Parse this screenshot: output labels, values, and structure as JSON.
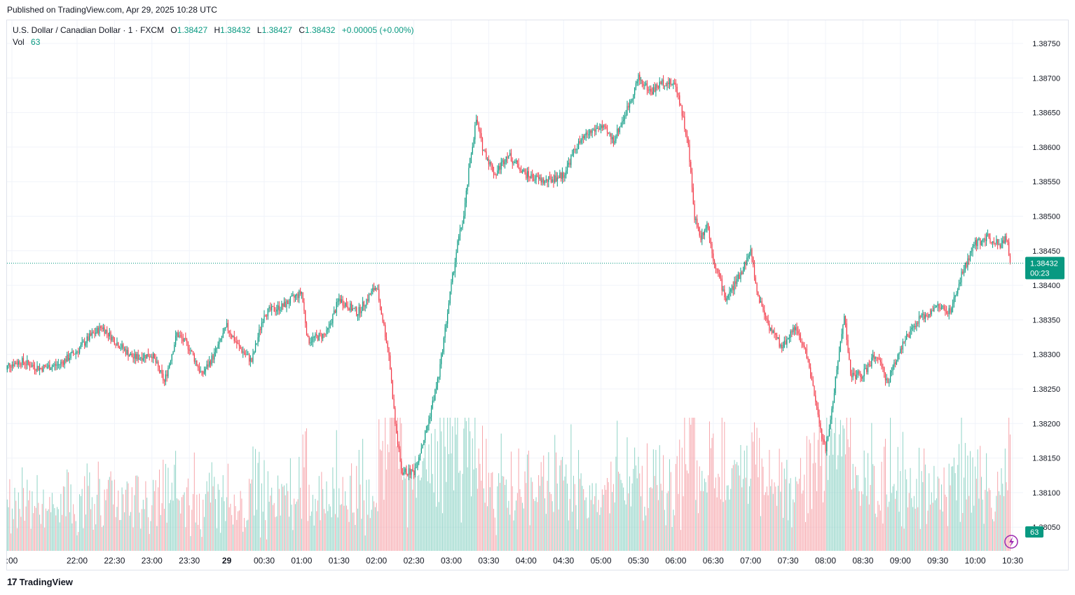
{
  "header": {
    "published": "Published on TradingView.com, Apr 29, 2025 10:28 UTC"
  },
  "legend": {
    "symbol": "U.S. Dollar / Canadian Dollar · 1 · FXCM",
    "o_label": "O",
    "o": "1.38427",
    "h_label": "H",
    "h": "1.38432",
    "l_label": "L",
    "l": "1.38427",
    "c_label": "C",
    "c": "1.38432",
    "change": "+0.00005 (+0.00%)",
    "vol_label": "Vol",
    "vol": "63"
  },
  "footer": {
    "brand": "TradingView",
    "logo_glyph": "17"
  },
  "colors": {
    "up": "#089981",
    "down": "#f23645",
    "grid": "#f0f3fa",
    "text": "#131722",
    "price_label_bg": "#089981",
    "volume_up": "#8fd3c6",
    "volume_down": "#f6a5ab",
    "icon": "#9c27b0"
  },
  "icons": {
    "bottom_right": "lightning-icon"
  },
  "chart_data": {
    "type": "candlestick",
    "title": "U.S. Dollar / Canadian Dollar · 1 · FXCM",
    "y_ticks": [
      "1.38750",
      "1.38700",
      "1.38650",
      "1.38600",
      "1.38550",
      "1.38500",
      "1.38450",
      "1.38400",
      "1.38350",
      "1.38300",
      "1.38250",
      "1.38200",
      "1.38150",
      "1.38100",
      "1.38050"
    ],
    "ylim": [
      1.38,
      1.388
    ],
    "x_ticks": [
      ":00",
      "22:00",
      "22:30",
      "23:00",
      "23:30",
      "29",
      "00:30",
      "01:00",
      "01:30",
      "02:00",
      "02:30",
      "03:00",
      "03:30",
      "04:00",
      "04:30",
      "05:00",
      "05:30",
      "06:00",
      "06:30",
      "07:00",
      "07:30",
      "08:00",
      "08:30",
      "09:00",
      "09:30",
      "10:00",
      "10:30"
    ],
    "last_price": "1.38432",
    "countdown": "00:23",
    "last_volume": "63",
    "price_path": [
      [
        "21:00",
        1.3827
      ],
      [
        "21:05",
        1.38285
      ],
      [
        "21:15",
        1.3829
      ],
      [
        "21:30",
        1.3828
      ],
      [
        "21:45",
        1.38285
      ],
      [
        "22:00",
        1.38305
      ],
      [
        "22:10",
        1.38325
      ],
      [
        "22:20",
        1.3834
      ],
      [
        "22:30",
        1.3832
      ],
      [
        "22:45",
        1.38295
      ],
      [
        "23:00",
        1.383
      ],
      [
        "23:10",
        1.3826
      ],
      [
        "23:20",
        1.3833
      ],
      [
        "23:30",
        1.3831
      ],
      [
        "23:40",
        1.3827
      ],
      [
        "23:50",
        1.383
      ],
      [
        "00:00",
        1.3834
      ],
      [
        "00:10",
        1.3831
      ],
      [
        "00:20",
        1.3829
      ],
      [
        "00:30",
        1.3836
      ],
      [
        "00:45",
        1.3837
      ],
      [
        "01:00",
        1.3839
      ],
      [
        "01:05",
        1.3832
      ],
      [
        "01:20",
        1.3833
      ],
      [
        "01:30",
        1.3838
      ],
      [
        "01:45",
        1.3836
      ],
      [
        "02:00",
        1.384
      ],
      [
        "02:05",
        1.3835
      ],
      [
        "02:10",
        1.383
      ],
      [
        "02:15",
        1.382
      ],
      [
        "02:20",
        1.3813
      ],
      [
        "02:30",
        1.3813
      ],
      [
        "02:40",
        1.3819
      ],
      [
        "02:45",
        1.3823
      ],
      [
        "02:50",
        1.3827
      ],
      [
        "03:00",
        1.384
      ],
      [
        "03:05",
        1.3846
      ],
      [
        "03:10",
        1.385
      ],
      [
        "03:15",
        1.3858
      ],
      [
        "03:20",
        1.3864
      ],
      [
        "03:25",
        1.386
      ],
      [
        "03:35",
        1.3856
      ],
      [
        "03:45",
        1.3859
      ],
      [
        "04:00",
        1.3856
      ],
      [
        "04:15",
        1.3855
      ],
      [
        "04:30",
        1.3856
      ],
      [
        "04:40",
        1.386
      ],
      [
        "04:50",
        1.3862
      ],
      [
        "05:00",
        1.3863
      ],
      [
        "05:10",
        1.3861
      ],
      [
        "05:20",
        1.3865
      ],
      [
        "05:30",
        1.387
      ],
      [
        "05:40",
        1.3868
      ],
      [
        "05:50",
        1.38695
      ],
      [
        "06:00",
        1.3869
      ],
      [
        "06:05",
        1.3865
      ],
      [
        "06:10",
        1.386
      ],
      [
        "06:15",
        1.385
      ],
      [
        "06:20",
        1.3847
      ],
      [
        "06:25",
        1.3849
      ],
      [
        "06:30",
        1.3844
      ],
      [
        "06:40",
        1.3838
      ],
      [
        "06:50",
        1.3841
      ],
      [
        "07:00",
        1.3845
      ],
      [
        "07:05",
        1.3839
      ],
      [
        "07:15",
        1.3834
      ],
      [
        "07:25",
        1.3831
      ],
      [
        "07:35",
        1.3834
      ],
      [
        "07:45",
        1.383
      ],
      [
        "07:55",
        1.382
      ],
      [
        "08:00",
        1.3816
      ],
      [
        "08:05",
        1.3822
      ],
      [
        "08:10",
        1.3829
      ],
      [
        "08:15",
        1.3836
      ],
      [
        "08:20",
        1.3827
      ],
      [
        "08:30",
        1.3827
      ],
      [
        "08:40",
        1.383
      ],
      [
        "08:50",
        1.3826
      ],
      [
        "09:00",
        1.3831
      ],
      [
        "09:15",
        1.3835
      ],
      [
        "09:30",
        1.3837
      ],
      [
        "09:40",
        1.3836
      ],
      [
        "09:50",
        1.3842
      ],
      [
        "10:00",
        1.3846
      ],
      [
        "10:10",
        1.3847
      ],
      [
        "10:20",
        1.3846
      ],
      [
        "10:25",
        1.3847
      ],
      [
        "10:28",
        1.38432
      ]
    ],
    "grid": true,
    "legend_position": "top-left"
  }
}
